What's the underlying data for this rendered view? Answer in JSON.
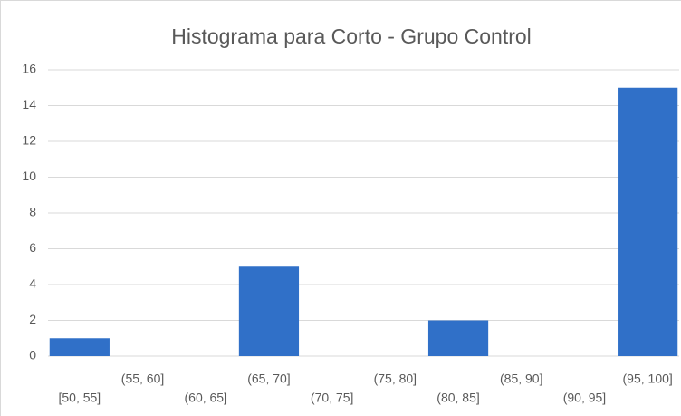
{
  "chart_data": {
    "type": "bar",
    "title": "Histograma para Corto - Grupo Control",
    "categories": [
      "[50, 55]",
      "(55, 60]",
      "(60, 65]",
      "(65, 70]",
      "(70, 75]",
      "(75, 80]",
      "(80, 85]",
      "(85, 90]",
      "(90, 95]",
      "(95, 100]"
    ],
    "values": [
      1,
      0,
      0,
      5,
      0,
      0,
      2,
      0,
      0,
      15
    ],
    "color": "#3070c8",
    "ylim": [
      0,
      16
    ],
    "yticks": [
      0,
      2,
      4,
      6,
      8,
      10,
      12,
      14,
      16
    ],
    "grid": true
  }
}
